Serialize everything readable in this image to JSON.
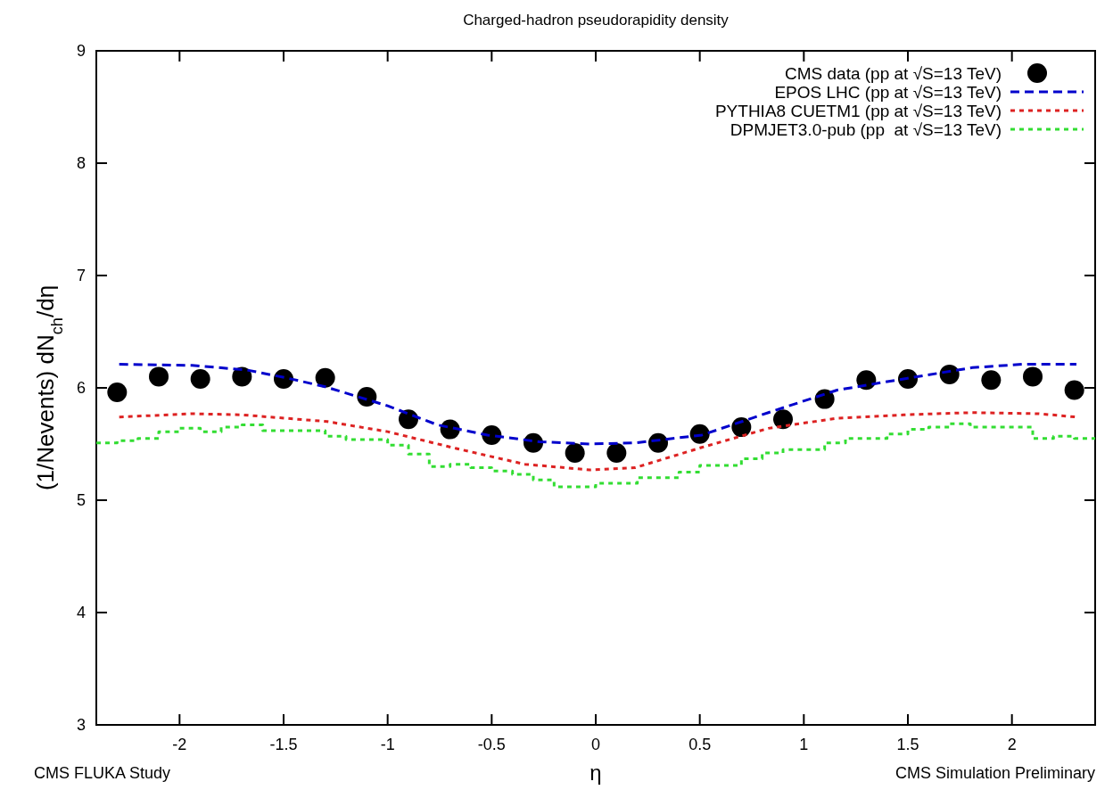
{
  "chart_data": {
    "type": "line",
    "title": "Charged-hadron pseudorapidity density",
    "xlabel": "η",
    "ylabel": "(1/Nevents) dN$_{ch}$/dη",
    "annotations": [
      "CMS FLUKA Study",
      "CMS Simulation Preliminary"
    ],
    "xlim": [
      -2.4,
      2.4
    ],
    "ylim": [
      3,
      9
    ],
    "xticks": [
      -2,
      -1.5,
      -1,
      -0.5,
      0,
      0.5,
      1,
      1.5,
      2
    ],
    "yticks": [
      3,
      4,
      5,
      6,
      7,
      8,
      9
    ],
    "grid": false,
    "legend": "top right",
    "series": [
      {
        "name": "CMS data (pp at √S=13 TeV)",
        "type": "scatter",
        "marker": "circle",
        "color": "#000000",
        "x": [
          -2.3,
          -2.1,
          -1.9,
          -1.7,
          -1.5,
          -1.3,
          -1.1,
          -0.9,
          -0.7,
          -0.5,
          -0.3,
          -0.1,
          0.1,
          0.3,
          0.5,
          0.7,
          0.9,
          1.1,
          1.3,
          1.5,
          1.7,
          1.9,
          2.1,
          2.3
        ],
        "values": [
          5.96,
          6.1,
          6.08,
          6.1,
          6.08,
          6.09,
          5.92,
          5.72,
          5.63,
          5.58,
          5.51,
          5.42,
          5.42,
          5.51,
          5.59,
          5.65,
          5.72,
          5.9,
          6.07,
          6.08,
          6.12,
          6.07,
          6.1,
          5.98
        ]
      },
      {
        "name": "EPOS LHC (pp at √S=13 TeV)",
        "line_style": "dashed",
        "color": "#0000cc",
        "x": [
          -2.29,
          -1.94,
          -1.68,
          -1.49,
          -1.3,
          -1.0,
          -0.76,
          -0.52,
          -0.27,
          -0.03,
          0.19,
          0.51,
          0.83,
          1.16,
          1.48,
          1.81,
          2.05,
          2.31
        ],
        "values": [
          6.21,
          6.2,
          6.16,
          6.09,
          6.01,
          5.84,
          5.67,
          5.58,
          5.52,
          5.5,
          5.51,
          5.58,
          5.78,
          5.98,
          6.08,
          6.18,
          6.21,
          6.21
        ]
      },
      {
        "name": "PYTHIA8 CUETM1 (pp at √S=13 TeV)",
        "line_style": "dotted",
        "color": "#dd2222",
        "x": [
          -2.29,
          -1.94,
          -1.7,
          -1.29,
          -1.0,
          -0.67,
          -0.34,
          -0.03,
          0.19,
          0.51,
          0.83,
          1.16,
          1.48,
          1.81,
          2.13,
          2.31
        ],
        "values": [
          5.74,
          5.77,
          5.76,
          5.7,
          5.61,
          5.46,
          5.32,
          5.27,
          5.29,
          5.47,
          5.64,
          5.73,
          5.76,
          5.78,
          5.77,
          5.74
        ]
      },
      {
        "name": "DPMJET3.0-pub (pp  at √S=13 TeV)",
        "type": "step",
        "line_style": "dotted",
        "color": "#33dd33",
        "x": [
          -2.4,
          -2.3,
          -2.2,
          -2.1,
          -2.0,
          -1.9,
          -1.8,
          -1.7,
          -1.6,
          -1.5,
          -1.4,
          -1.3,
          -1.2,
          -1.1,
          -1.0,
          -0.9,
          -0.8,
          -0.7,
          -0.6,
          -0.5,
          -0.4,
          -0.3,
          -0.2,
          -0.1,
          0,
          0.1,
          0.2,
          0.3,
          0.4,
          0.5,
          0.6,
          0.7,
          0.8,
          0.9,
          1.0,
          1.1,
          1.2,
          1.3,
          1.4,
          1.5,
          1.6,
          1.7,
          1.8,
          1.9,
          2.0,
          2.1,
          2.2,
          2.3,
          2.4
        ],
        "values": [
          5.51,
          5.53,
          5.55,
          5.61,
          5.64,
          5.61,
          5.65,
          5.67,
          5.62,
          5.62,
          5.62,
          5.57,
          5.54,
          5.54,
          5.49,
          5.41,
          5.3,
          5.32,
          5.29,
          5.26,
          5.23,
          5.18,
          5.12,
          5.12,
          5.15,
          5.15,
          5.2,
          5.2,
          5.25,
          5.31,
          5.31,
          5.37,
          5.42,
          5.45,
          5.45,
          5.51,
          5.55,
          5.55,
          5.59,
          5.63,
          5.65,
          5.68,
          5.65,
          5.65,
          5.65,
          5.55,
          5.57,
          5.55,
          5.55
        ]
      }
    ]
  }
}
